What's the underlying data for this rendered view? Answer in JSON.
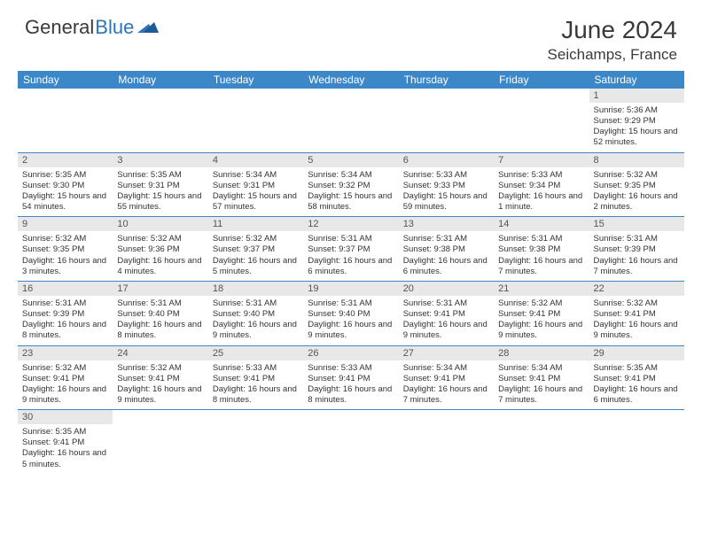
{
  "brand": {
    "text1": "General",
    "text2": "Blue"
  },
  "title": "June 2024",
  "location": "Seichamps, France",
  "colors": {
    "header_bg": "#3b87c8",
    "header_text": "#ffffff",
    "daynum_bg": "#e8e8e8",
    "border": "#3b87c8",
    "brand_blue": "#2a75bb",
    "text": "#3a3a3a"
  },
  "daynames": [
    "Sunday",
    "Monday",
    "Tuesday",
    "Wednesday",
    "Thursday",
    "Friday",
    "Saturday"
  ],
  "weeks": [
    [
      null,
      null,
      null,
      null,
      null,
      null,
      {
        "n": "1",
        "sr": "5:36 AM",
        "ss": "9:29 PM",
        "dl": "15 hours and 52 minutes."
      }
    ],
    [
      {
        "n": "2",
        "sr": "5:35 AM",
        "ss": "9:30 PM",
        "dl": "15 hours and 54 minutes."
      },
      {
        "n": "3",
        "sr": "5:35 AM",
        "ss": "9:31 PM",
        "dl": "15 hours and 55 minutes."
      },
      {
        "n": "4",
        "sr": "5:34 AM",
        "ss": "9:31 PM",
        "dl": "15 hours and 57 minutes."
      },
      {
        "n": "5",
        "sr": "5:34 AM",
        "ss": "9:32 PM",
        "dl": "15 hours and 58 minutes."
      },
      {
        "n": "6",
        "sr": "5:33 AM",
        "ss": "9:33 PM",
        "dl": "15 hours and 59 minutes."
      },
      {
        "n": "7",
        "sr": "5:33 AM",
        "ss": "9:34 PM",
        "dl": "16 hours and 1 minute."
      },
      {
        "n": "8",
        "sr": "5:32 AM",
        "ss": "9:35 PM",
        "dl": "16 hours and 2 minutes."
      }
    ],
    [
      {
        "n": "9",
        "sr": "5:32 AM",
        "ss": "9:35 PM",
        "dl": "16 hours and 3 minutes."
      },
      {
        "n": "10",
        "sr": "5:32 AM",
        "ss": "9:36 PM",
        "dl": "16 hours and 4 minutes."
      },
      {
        "n": "11",
        "sr": "5:32 AM",
        "ss": "9:37 PM",
        "dl": "16 hours and 5 minutes."
      },
      {
        "n": "12",
        "sr": "5:31 AM",
        "ss": "9:37 PM",
        "dl": "16 hours and 6 minutes."
      },
      {
        "n": "13",
        "sr": "5:31 AM",
        "ss": "9:38 PM",
        "dl": "16 hours and 6 minutes."
      },
      {
        "n": "14",
        "sr": "5:31 AM",
        "ss": "9:38 PM",
        "dl": "16 hours and 7 minutes."
      },
      {
        "n": "15",
        "sr": "5:31 AM",
        "ss": "9:39 PM",
        "dl": "16 hours and 7 minutes."
      }
    ],
    [
      {
        "n": "16",
        "sr": "5:31 AM",
        "ss": "9:39 PM",
        "dl": "16 hours and 8 minutes."
      },
      {
        "n": "17",
        "sr": "5:31 AM",
        "ss": "9:40 PM",
        "dl": "16 hours and 8 minutes."
      },
      {
        "n": "18",
        "sr": "5:31 AM",
        "ss": "9:40 PM",
        "dl": "16 hours and 9 minutes."
      },
      {
        "n": "19",
        "sr": "5:31 AM",
        "ss": "9:40 PM",
        "dl": "16 hours and 9 minutes."
      },
      {
        "n": "20",
        "sr": "5:31 AM",
        "ss": "9:41 PM",
        "dl": "16 hours and 9 minutes."
      },
      {
        "n": "21",
        "sr": "5:32 AM",
        "ss": "9:41 PM",
        "dl": "16 hours and 9 minutes."
      },
      {
        "n": "22",
        "sr": "5:32 AM",
        "ss": "9:41 PM",
        "dl": "16 hours and 9 minutes."
      }
    ],
    [
      {
        "n": "23",
        "sr": "5:32 AM",
        "ss": "9:41 PM",
        "dl": "16 hours and 9 minutes."
      },
      {
        "n": "24",
        "sr": "5:32 AM",
        "ss": "9:41 PM",
        "dl": "16 hours and 9 minutes."
      },
      {
        "n": "25",
        "sr": "5:33 AM",
        "ss": "9:41 PM",
        "dl": "16 hours and 8 minutes."
      },
      {
        "n": "26",
        "sr": "5:33 AM",
        "ss": "9:41 PM",
        "dl": "16 hours and 8 minutes."
      },
      {
        "n": "27",
        "sr": "5:34 AM",
        "ss": "9:41 PM",
        "dl": "16 hours and 7 minutes."
      },
      {
        "n": "28",
        "sr": "5:34 AM",
        "ss": "9:41 PM",
        "dl": "16 hours and 7 minutes."
      },
      {
        "n": "29",
        "sr": "5:35 AM",
        "ss": "9:41 PM",
        "dl": "16 hours and 6 minutes."
      }
    ],
    [
      {
        "n": "30",
        "sr": "5:35 AM",
        "ss": "9:41 PM",
        "dl": "16 hours and 5 minutes."
      },
      null,
      null,
      null,
      null,
      null,
      null
    ]
  ],
  "labels": {
    "sunrise": "Sunrise:",
    "sunset": "Sunset:",
    "daylight": "Daylight:"
  }
}
